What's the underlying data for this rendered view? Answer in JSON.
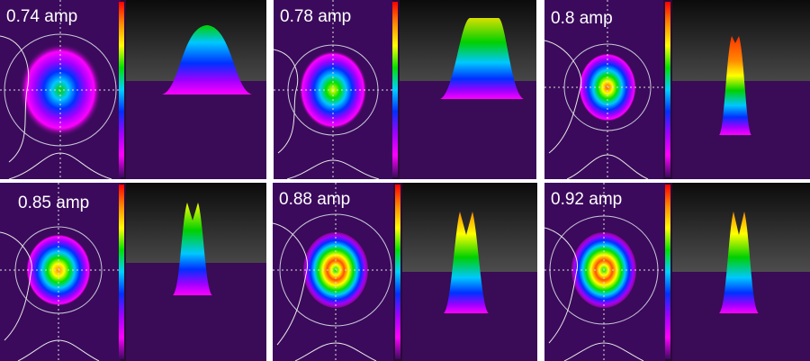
{
  "panels": [
    {
      "current_label": "0.74 amp"
    },
    {
      "current_label": "0.78 amp"
    },
    {
      "current_label": "0.8 amp"
    },
    {
      "current_label": "0.85 amp"
    },
    {
      "current_label": "0.88 amp"
    },
    {
      "current_label": "0.92 amp"
    }
  ],
  "colormap": [
    "#ff0000",
    "#ff8a00",
    "#ffff00",
    "#00e000",
    "#00d0ff",
    "#0030ff",
    "#a000ff",
    "#ff00ff",
    "#3b0a5c"
  ]
}
